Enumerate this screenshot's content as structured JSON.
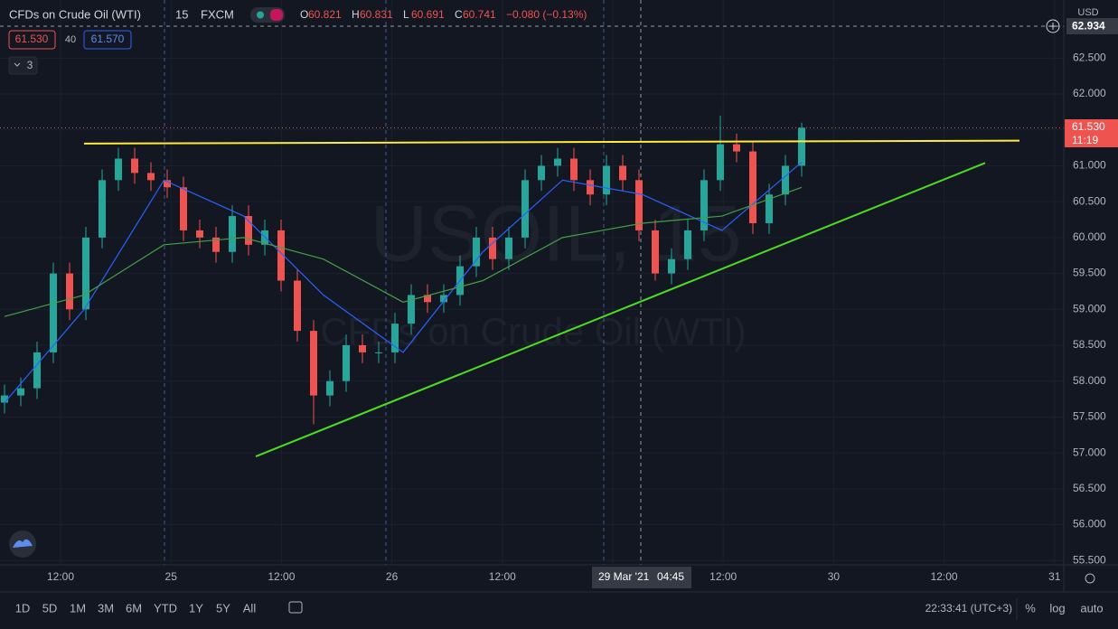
{
  "header": {
    "symbol": "CFDs on Crude Oil (WTI)",
    "interval": "15",
    "exchange": "FXCM",
    "ohlc": [
      {
        "label": "O",
        "value": "60.821"
      },
      {
        "label": "H",
        "value": "60.831"
      },
      {
        "label": "L",
        "value": "60.691"
      },
      {
        "label": "C",
        "value": "60.741"
      }
    ],
    "change": "−0.080 (−0.13%)",
    "bid": "61.530",
    "spread": "40",
    "ask": "61.570",
    "indicators": "3"
  },
  "watermark": {
    "line1": "USOIL, 15",
    "line2": "CFDs on Crude Oil (WTI)"
  },
  "price_axis": {
    "currency": "USD",
    "crosshair_price": "62.934",
    "last_price": "61.530",
    "countdown": "11:19"
  },
  "time_axis": {
    "crosshair_date": "29 Mar '21",
    "crosshair_time": "04:45"
  },
  "chart_data": {
    "type": "candlestick",
    "ylim": [
      55.44,
      63.31
    ],
    "yticks": [
      {
        "value": 55.5,
        "label": "55.500"
      },
      {
        "value": 56,
        "label": "56.000"
      },
      {
        "value": 56.5,
        "label": "56.500"
      },
      {
        "value": 57,
        "label": "57.000"
      },
      {
        "value": 57.5,
        "label": "57.500"
      },
      {
        "value": 58,
        "label": "58.000"
      },
      {
        "value": 58.5,
        "label": "58.500"
      },
      {
        "value": 59,
        "label": "59.000"
      },
      {
        "value": 59.5,
        "label": "59.500"
      },
      {
        "value": 60,
        "label": "60.000"
      },
      {
        "value": 60.5,
        "label": "60.500"
      },
      {
        "value": 61,
        "label": "61.000"
      },
      {
        "value": 61.5,
        "label": "61.500"
      },
      {
        "value": 62,
        "label": "62.000"
      },
      {
        "value": 62.5,
        "label": "62.500"
      }
    ],
    "x_labels": [
      "12:00",
      "25",
      "12:00",
      "26",
      "12:00",
      null,
      "12:00",
      "30",
      "12:00",
      "31"
    ],
    "up_color": "#26a69a",
    "down_color": "#ef5350",
    "open": [
      57.7,
      57.8,
      57.9,
      58.4,
      59.5,
      59.0,
      60.0,
      60.8,
      61.1,
      60.9,
      60.8,
      60.7,
      60.1,
      60.0,
      59.8,
      60.3,
      59.9,
      60.1,
      59.4,
      58.7,
      57.8,
      58.0,
      58.5,
      58.4,
      58.4,
      58.8,
      59.2,
      59.1,
      59.2,
      59.6,
      60.0,
      59.7,
      60.0,
      60.8,
      61.0,
      61.1,
      60.8,
      60.6,
      61.0,
      60.8,
      60.1,
      59.5,
      59.7,
      60.1,
      60.8,
      61.3,
      61.2,
      60.2,
      60.6,
      61.0
    ],
    "high": [
      57.95,
      58.05,
      58.55,
      59.65,
      59.65,
      60.15,
      60.95,
      61.25,
      61.25,
      61.05,
      60.95,
      60.85,
      60.25,
      60.15,
      60.45,
      60.45,
      60.25,
      60.25,
      59.55,
      58.85,
      58.15,
      58.65,
      58.65,
      58.55,
      58.95,
      59.35,
      59.35,
      59.35,
      59.75,
      60.15,
      60.15,
      60.15,
      60.95,
      61.15,
      61.25,
      61.25,
      60.95,
      61.15,
      61.15,
      60.95,
      60.25,
      59.85,
      60.25,
      60.95,
      61.7,
      61.45,
      61.35,
      60.75,
      61.15,
      61.6
    ],
    "low": [
      57.55,
      57.65,
      57.75,
      58.25,
      58.85,
      58.85,
      59.85,
      60.65,
      60.75,
      60.65,
      60.55,
      59.95,
      59.85,
      59.65,
      59.65,
      59.75,
      59.75,
      59.25,
      58.55,
      57.4,
      57.65,
      57.85,
      58.25,
      58.25,
      58.25,
      58.65,
      58.95,
      58.95,
      59.05,
      59.45,
      59.55,
      59.55,
      59.85,
      60.65,
      60.85,
      60.65,
      60.45,
      60.45,
      60.65,
      59.95,
      59.4,
      59.35,
      59.55,
      59.95,
      60.65,
      61.05,
      60.05,
      60.05,
      60.45,
      60.85
    ],
    "close": [
      57.8,
      57.9,
      58.4,
      59.5,
      59.0,
      60.0,
      60.8,
      61.1,
      60.9,
      60.8,
      60.7,
      60.1,
      60.0,
      59.8,
      60.3,
      59.9,
      60.1,
      59.4,
      58.7,
      57.8,
      58.0,
      58.5,
      58.4,
      58.4,
      58.8,
      59.2,
      59.1,
      59.2,
      59.6,
      60.0,
      59.7,
      60.0,
      60.8,
      61.0,
      61.1,
      60.8,
      60.6,
      61.0,
      60.8,
      60.1,
      59.5,
      59.7,
      60.1,
      60.8,
      61.3,
      61.2,
      60.2,
      60.6,
      61.0,
      61.53
    ],
    "moving_averages": [
      {
        "color": "#2962ff",
        "values": [
          57.7,
          59.0,
          60.8,
          60.3,
          59.2,
          58.4,
          59.8,
          60.8,
          60.6,
          60.1,
          61.05
        ]
      },
      {
        "color": "#43a047",
        "values": [
          58.9,
          59.2,
          59.9,
          60.0,
          59.7,
          59.1,
          59.4,
          60.0,
          60.2,
          60.3,
          60.7
        ]
      }
    ],
    "trendlines": [
      {
        "color": "#ffeb3b",
        "values": [
          61.31,
          61.35
        ]
      },
      {
        "color": "#4cdd22",
        "values": [
          56.95,
          61.04
        ]
      }
    ]
  },
  "toolbar": {
    "ranges": [
      "1D",
      "5D",
      "1M",
      "3M",
      "6M",
      "YTD",
      "1Y",
      "5Y",
      "All"
    ],
    "clock": "22:33:41 (UTC+3)",
    "options": [
      "%",
      "log",
      "auto"
    ]
  }
}
